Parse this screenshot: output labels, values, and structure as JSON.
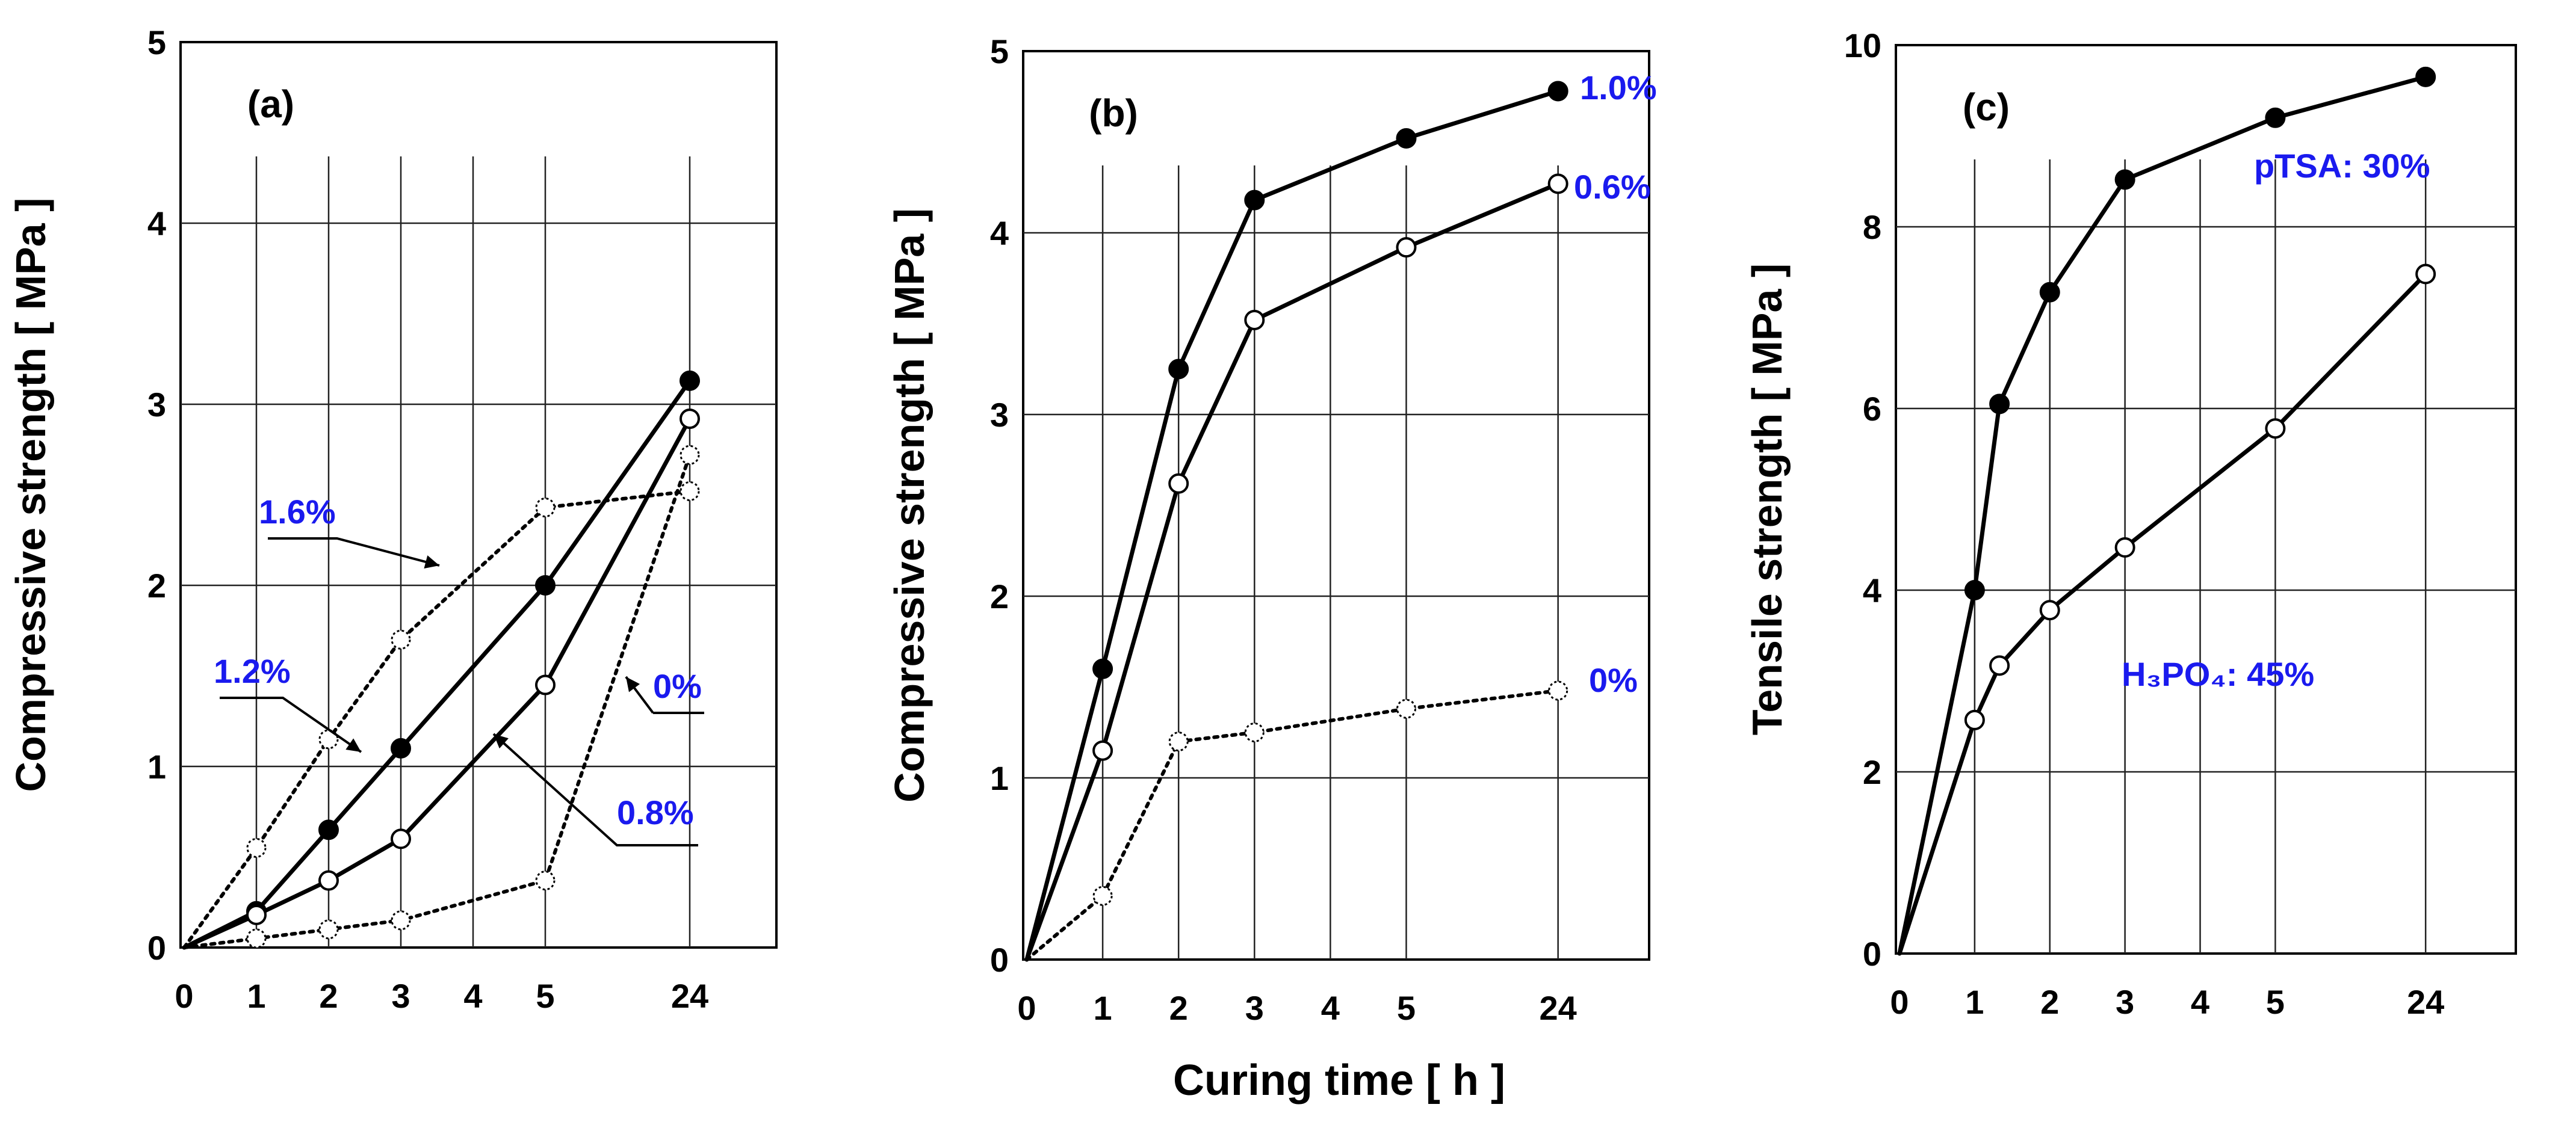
{
  "colors": {
    "accent": "#1a1aee",
    "line": "#000000",
    "dotted": "#000000"
  },
  "xlabel_shared": "Curing time [ h ]",
  "chart_data": [
    {
      "type": "line",
      "panel_label": "(a)",
      "ylabel": "Compressive strength [ MPa ]",
      "xlabel": "Curing time [ h ]",
      "x_ticks": [
        "0",
        "1",
        "2",
        "3",
        "4",
        "5",
        "24"
      ],
      "y_ticks": [
        "0",
        "1",
        "2",
        "3",
        "4",
        "5"
      ],
      "ylim": [
        0,
        5
      ],
      "grid": true,
      "series": [
        {
          "name": "1.2%",
          "style": "solid",
          "marker": "filled",
          "x": [
            "1",
            "2",
            "3",
            "5",
            "24"
          ],
          "values": [
            0.2,
            0.65,
            1.1,
            2.0,
            3.13
          ]
        },
        {
          "name": "0.8%",
          "style": "solid",
          "marker": "open",
          "x": [
            "1",
            "2",
            "3",
            "5",
            "24"
          ],
          "values": [
            0.18,
            0.37,
            0.6,
            1.45,
            2.92
          ]
        },
        {
          "name": "1.6%",
          "style": "dotted",
          "marker": "open-dotted",
          "x": [
            "1",
            "2",
            "3",
            "5",
            "24"
          ],
          "values": [
            0.55,
            1.15,
            1.7,
            2.43,
            2.52
          ]
        },
        {
          "name": "0%",
          "style": "dotted",
          "marker": "open-dotted",
          "x": [
            "1",
            "2",
            "3",
            "5",
            "24"
          ],
          "values": [
            0.05,
            0.1,
            0.15,
            0.37,
            2.72
          ]
        }
      ],
      "annotations": [
        "1.6%",
        "1.2%",
        "0%",
        "0.8%"
      ]
    },
    {
      "type": "line",
      "panel_label": "(b)",
      "ylabel": "Compressive strength [ MPa ]",
      "xlabel": "Curing time [ h ]",
      "x_ticks": [
        "0",
        "1",
        "2",
        "3",
        "4",
        "5",
        "24"
      ],
      "y_ticks": [
        "0",
        "1",
        "2",
        "3",
        "4",
        "5"
      ],
      "ylim": [
        0,
        5
      ],
      "grid": true,
      "series": [
        {
          "name": "1.0%",
          "style": "solid",
          "marker": "filled",
          "x": [
            "1",
            "2",
            "3",
            "5",
            "24"
          ],
          "values": [
            1.6,
            3.25,
            4.18,
            4.52,
            4.78
          ]
        },
        {
          "name": "0.6%",
          "style": "solid",
          "marker": "open",
          "x": [
            "1",
            "2",
            "3",
            "5",
            "24"
          ],
          "values": [
            1.15,
            2.62,
            3.52,
            3.92,
            4.27
          ]
        },
        {
          "name": "0%",
          "style": "dotted",
          "marker": "open-dotted",
          "x": [
            "1",
            "2",
            "3",
            "5",
            "24"
          ],
          "values": [
            0.35,
            1.2,
            1.25,
            1.38,
            1.48
          ]
        }
      ],
      "annotations": [
        "1.0%",
        "0.6%",
        "0%"
      ]
    },
    {
      "type": "line",
      "panel_label": "(c)",
      "ylabel": "Tensile strength [ MPa ]",
      "xlabel": "Curing time [ h ]",
      "x_ticks": [
        "0",
        "1",
        "2",
        "3",
        "4",
        "5",
        "24"
      ],
      "y_ticks": [
        "0",
        "2",
        "4",
        "6",
        "8",
        "10"
      ],
      "ylim": [
        0,
        10
      ],
      "grid": true,
      "series": [
        {
          "name": "pTSA: 30%",
          "style": "solid",
          "marker": "filled",
          "x": [
            "1",
            "1.33",
            "2",
            "3",
            "5",
            "24"
          ],
          "values": [
            4.0,
            6.05,
            7.28,
            8.52,
            9.2,
            9.65
          ]
        },
        {
          "name": "H₃PO₄: 45%",
          "style": "solid",
          "marker": "open",
          "x": [
            "1",
            "1.33",
            "2",
            "3",
            "5",
            "24"
          ],
          "values": [
            2.57,
            3.17,
            3.78,
            4.47,
            5.78,
            7.48
          ]
        }
      ],
      "annotations": [
        "pTSA: 30%",
        "H₃PO₄: 45%"
      ]
    }
  ]
}
